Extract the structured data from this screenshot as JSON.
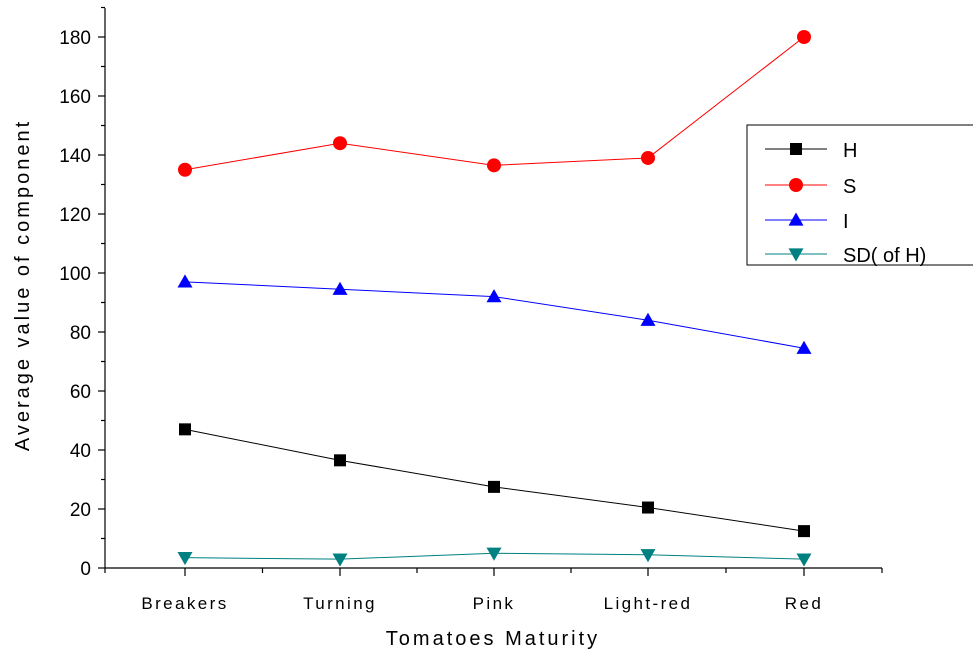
{
  "chart_data": {
    "type": "line",
    "title": "",
    "xlabel": "Tomatoes Maturity",
    "ylabel": "Average value of component",
    "categories": [
      "Breakers",
      "Turning",
      "Pink",
      "Light-red",
      "Red"
    ],
    "ylim": [
      0,
      190
    ],
    "yticks": [
      0,
      20,
      40,
      60,
      80,
      100,
      120,
      140,
      160,
      180
    ],
    "grid": false,
    "legend_position": "right",
    "series": [
      {
        "name": "H",
        "values": [
          47,
          36.5,
          27.5,
          20.5,
          12.5
        ],
        "color": "#000000",
        "marker": "square"
      },
      {
        "name": "S",
        "values": [
          135,
          144,
          136.5,
          139,
          180
        ],
        "color": "#ff0000",
        "marker": "circle"
      },
      {
        "name": "I",
        "values": [
          97,
          94.5,
          92,
          84,
          74.5
        ],
        "color": "#0000ff",
        "marker": "triangle-up"
      },
      {
        "name": "SD( of  H)",
        "values": [
          3.5,
          3,
          5,
          4.5,
          3
        ],
        "color": "#008080",
        "marker": "triangle-down"
      }
    ]
  }
}
